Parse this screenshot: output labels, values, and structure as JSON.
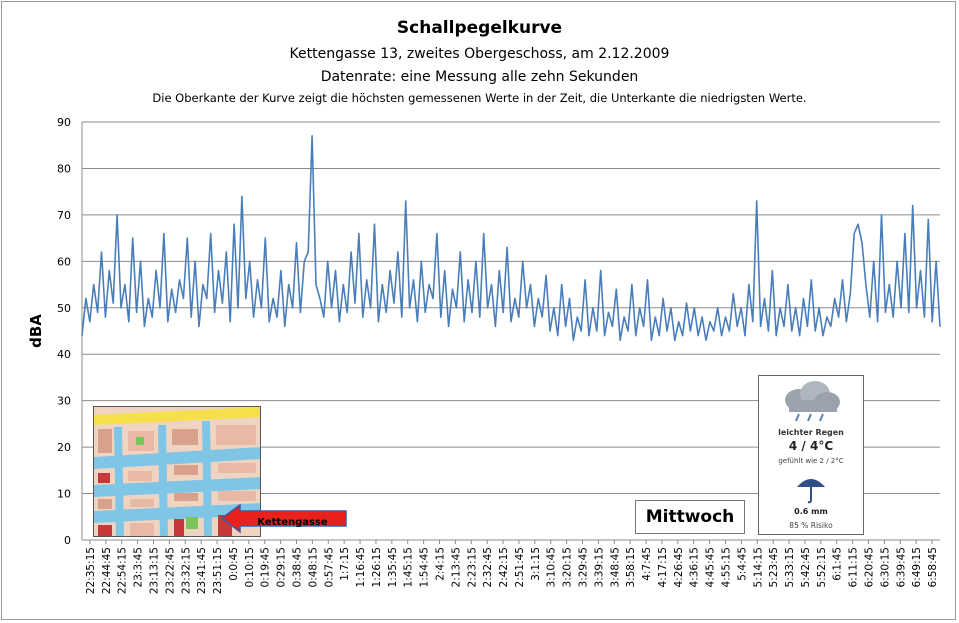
{
  "header": {
    "title": "Schallpegelkurve",
    "subtitle": "Kettengasse 13, zweites Obergeschoss, am 2.12.2009",
    "datarate": "Datenrate: eine Messung alle zehn Sekunden",
    "note": "Die Oberkante der Kurve zeigt die höchsten gemessenen Werte  in der Zeit, die Unterkante  die niedrigsten Werte."
  },
  "day_label": "Mittwoch",
  "map": {
    "arrow_label": "Kettengasse"
  },
  "weather": {
    "icon": "rain-cloud-icon",
    "condition": "leichter Regen",
    "temperature": "4 / 4°C",
    "feels_like": "gefühlt wie 2 / 2°C",
    "rain_icon": "umbrella-icon",
    "precipitation": "0.6 mm",
    "risk": "85 % Risiko"
  },
  "chart_data": {
    "type": "line",
    "title": "Schallpegelkurve",
    "ylabel": "dBA",
    "xlabel": "",
    "ylim": [
      0,
      90
    ],
    "yticks": [
      0,
      10,
      20,
      30,
      40,
      50,
      60,
      70,
      80,
      90
    ],
    "grid": true,
    "color": "#4a7ebb",
    "xticks": [
      "22:35:15",
      "22:44:45",
      "22:54:15",
      "23:3:45",
      "23:13:15",
      "23:22:45",
      "23:32:15",
      "23:41:45",
      "23:51:15",
      "0:0:45",
      "0:10:15",
      "0:19:45",
      "0:29:15",
      "0:38:45",
      "0:48:15",
      "0:57:45",
      "1:7:15",
      "1:16:45",
      "1:26:15",
      "1:35:45",
      "1:45:15",
      "1:54:45",
      "2:4:15",
      "2:13:45",
      "2:23:15",
      "2:32:45",
      "2:42:15",
      "2:51:45",
      "3:1:15",
      "3:10:45",
      "3:20:15",
      "3:29:45",
      "3:39:15",
      "3:48:45",
      "3:58:15",
      "4:7:45",
      "4:17:15",
      "4:26:45",
      "4:36:15",
      "4:45:45",
      "4:55:15",
      "5:4:45",
      "5:14:15",
      "5:23:45",
      "5:33:15",
      "5:42:45",
      "5:52:15",
      "6:1:45",
      "6:11:15",
      "6:20:45",
      "6:30:15",
      "6:39:45",
      "6:49:15",
      "6:58:45"
    ],
    "series": [
      {
        "values": [
          44,
          52,
          47,
          55,
          49,
          62,
          48,
          58,
          51,
          70,
          50,
          55,
          47,
          65,
          49,
          60,
          46,
          52,
          48,
          58,
          50,
          66,
          47,
          54,
          49,
          56,
          52,
          65,
          48,
          60,
          46,
          55,
          52,
          66,
          49,
          58,
          51,
          62,
          47,
          68,
          50,
          74,
          52,
          60,
          48,
          56,
          50,
          65,
          47,
          52,
          48,
          58,
          46,
          55,
          50,
          64,
          49,
          60,
          62,
          87,
          55,
          52,
          48,
          60,
          50,
          58,
          47,
          55,
          49,
          62,
          51,
          66,
          48,
          56,
          50,
          68,
          47,
          55,
          49,
          58,
          51,
          62,
          48,
          73,
          50,
          56,
          47,
          60,
          49,
          55,
          52,
          66,
          48,
          58,
          46,
          54,
          50,
          62,
          47,
          56,
          49,
          60,
          48,
          66,
          50,
          55,
          46,
          58,
          49,
          63,
          47,
          52,
          48,
          60,
          50,
          55,
          46,
          52,
          48,
          57,
          45,
          50,
          44,
          55,
          46,
          52,
          43,
          48,
          45,
          56,
          44,
          50,
          45,
          58,
          44,
          49,
          46,
          54,
          43,
          48,
          45,
          55,
          44,
          50,
          46,
          56,
          43,
          48,
          44,
          52,
          45,
          50,
          43,
          47,
          44,
          51,
          45,
          50,
          44,
          48,
          43,
          47,
          45,
          50,
          44,
          48,
          45,
          53,
          46,
          50,
          44,
          55,
          47,
          73,
          46,
          52,
          45,
          58,
          44,
          50,
          46,
          55,
          45,
          50,
          44,
          52,
          46,
          56,
          45,
          50,
          44,
          48,
          46,
          52,
          48,
          56,
          47,
          53,
          66,
          68,
          64,
          55,
          48,
          60,
          47,
          70,
          49,
          55,
          48,
          60,
          50,
          66,
          49,
          72,
          50,
          58,
          48,
          69,
          47,
          60,
          46
        ]
      }
    ]
  }
}
